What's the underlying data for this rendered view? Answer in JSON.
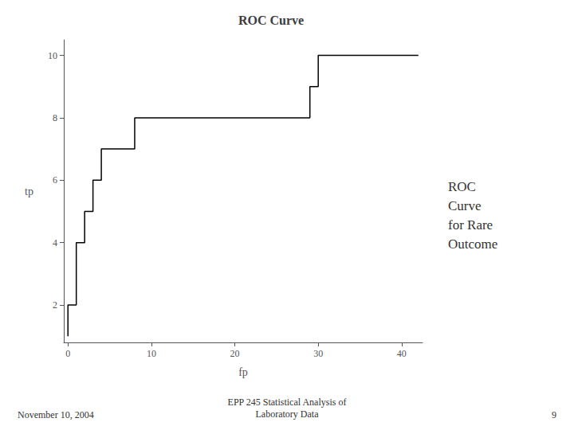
{
  "chart_data": {
    "type": "line",
    "title": "ROC Curve",
    "xlabel": "fp",
    "ylabel": "tp",
    "x": [
      0,
      0,
      1,
      1,
      2,
      2,
      3,
      3,
      4,
      4,
      8,
      8,
      29,
      29,
      30,
      30,
      32,
      32,
      42
    ],
    "values": [
      1,
      2,
      2,
      4,
      4,
      5,
      5,
      6,
      6,
      7,
      7,
      8,
      8,
      9,
      9,
      10,
      10,
      10,
      10
    ],
    "color": "#000000",
    "xlim": [
      -0.5,
      42.5
    ],
    "ylim": [
      0.8,
      10.5
    ],
    "xticks": [
      0,
      10,
      20,
      30,
      40
    ],
    "yticks": [
      2,
      4,
      6,
      8,
      10
    ],
    "grid": false,
    "annotations": [
      "ROC\nCurve\nfor Rare\nOutcome",
      "November 10, 2004",
      "EPP 245 Statistical Analysis of\nLaboratory Data",
      "9"
    ]
  }
}
